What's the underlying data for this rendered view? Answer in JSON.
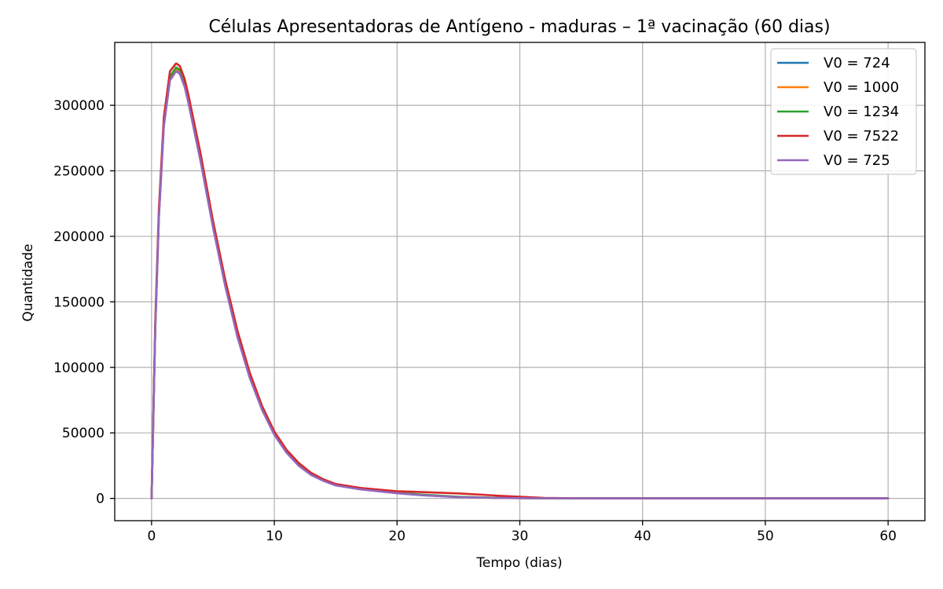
{
  "chart_data": {
    "type": "line",
    "title": "Células Apresentadoras de Antígeno - maduras – 1ª vacinação (60 dias)",
    "xlabel": "Tempo (dias)",
    "ylabel": "Quantidade",
    "xlim": [
      -3,
      63
    ],
    "ylim": [
      -17000,
      348000
    ],
    "xticks": [
      0,
      10,
      20,
      30,
      40,
      50,
      60
    ],
    "yticks": [
      0,
      50000,
      100000,
      150000,
      200000,
      250000,
      300000
    ],
    "grid": true,
    "legend_position": "top-right",
    "series": [
      {
        "name": "V0 = 724",
        "color": "#1f77b4",
        "x": [
          0,
          0.3,
          0.6,
          1,
          1.5,
          2,
          2.3,
          2.7,
          3,
          4,
          5,
          6,
          7,
          8,
          9,
          10,
          11,
          12,
          13,
          14,
          15,
          17,
          20,
          22,
          25,
          28,
          30,
          32,
          35,
          40,
          50,
          60
        ],
        "y": [
          0,
          130000,
          215000,
          285000,
          320000,
          327000,
          325000,
          315000,
          303000,
          258000,
          208000,
          163000,
          124000,
          93000,
          68000,
          49000,
          35000,
          25000,
          18000,
          13500,
          10000,
          7000,
          4000,
          2500,
          1000,
          400,
          200,
          100,
          0,
          0,
          0,
          0
        ]
      },
      {
        "name": "V0 = 1000",
        "color": "#ff7f0e",
        "x": [
          0,
          0.3,
          0.6,
          1,
          1.5,
          2,
          2.3,
          2.7,
          3,
          4,
          5,
          6,
          7,
          8,
          9,
          10,
          11,
          12,
          13,
          14,
          15,
          17,
          20,
          22,
          25,
          28,
          30,
          32,
          35,
          40,
          50,
          60
        ],
        "y": [
          0,
          131000,
          216000,
          286000,
          321000,
          328000,
          326000,
          316000,
          304000,
          259000,
          209000,
          164000,
          125000,
          94000,
          69000,
          49500,
          35500,
          25500,
          18300,
          13700,
          10200,
          7200,
          4200,
          2700,
          1100,
          450,
          220,
          100,
          0,
          0,
          0,
          0
        ]
      },
      {
        "name": "V0 = 1234",
        "color": "#2ca02c",
        "x": [
          0,
          0.3,
          0.6,
          1,
          1.5,
          2,
          2.3,
          2.7,
          3,
          4,
          5,
          6,
          7,
          8,
          9,
          10,
          11,
          12,
          13,
          14,
          15,
          17,
          20,
          22,
          25,
          28,
          30,
          32,
          35,
          40,
          50,
          60
        ],
        "y": [
          0,
          132000,
          217000,
          287000,
          322000,
          329000,
          327000,
          317000,
          305000,
          260000,
          210000,
          165000,
          126000,
          95000,
          69500,
          50000,
          36000,
          26000,
          18600,
          14000,
          10500,
          7400,
          4400,
          2900,
          1200,
          500,
          250,
          120,
          0,
          0,
          0,
          0
        ]
      },
      {
        "name": "V0 = 7522",
        "color": "#d62728",
        "x": [
          0,
          0.3,
          0.6,
          1,
          1.5,
          2,
          2.3,
          2.7,
          3,
          4,
          5,
          6,
          7,
          8,
          9,
          10,
          11,
          12,
          13,
          14,
          15,
          17,
          20,
          22,
          25,
          27,
          28,
          30,
          32,
          35,
          40,
          50,
          60
        ],
        "y": [
          0,
          135000,
          221000,
          291000,
          326000,
          332000,
          330000,
          320000,
          308000,
          263000,
          212000,
          167000,
          128000,
          96000,
          70500,
          51000,
          37000,
          27000,
          19500,
          14500,
          11000,
          8000,
          5500,
          4800,
          3800,
          2800,
          2200,
          1200,
          400,
          100,
          0,
          0,
          0
        ]
      },
      {
        "name": "V0 = 725",
        "color": "#9467bd",
        "x": [
          0,
          0.3,
          0.6,
          1,
          1.5,
          2,
          2.3,
          2.7,
          3,
          4,
          5,
          6,
          7,
          8,
          9,
          10,
          11,
          12,
          13,
          14,
          15,
          17,
          20,
          22,
          25,
          28,
          30,
          32,
          35,
          40,
          50,
          60
        ],
        "y": [
          0,
          129000,
          214000,
          284000,
          319000,
          326000,
          324000,
          314000,
          302000,
          257000,
          207000,
          162000,
          123000,
          92000,
          67500,
          48500,
          34800,
          24800,
          17900,
          13400,
          9900,
          6900,
          3900,
          2400,
          950,
          380,
          190,
          90,
          0,
          0,
          0,
          0
        ]
      }
    ]
  }
}
